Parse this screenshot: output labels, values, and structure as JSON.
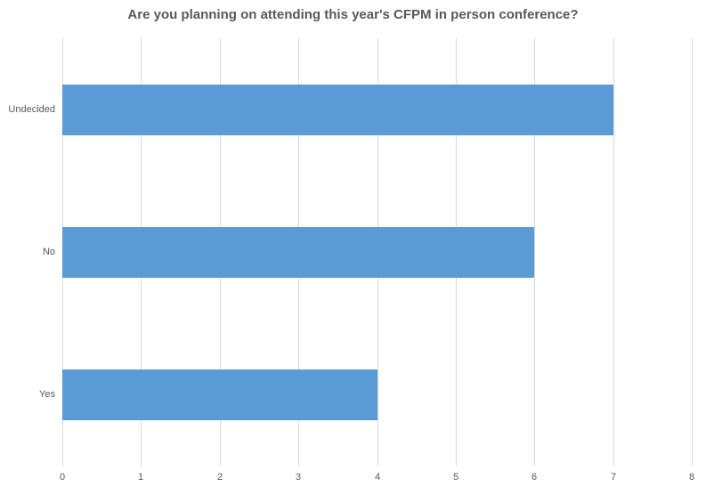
{
  "chart_data": {
    "type": "bar",
    "orientation": "horizontal",
    "title": "Are you planning on attending this year's CFPM in person conference?",
    "categories": [
      "Undecided",
      "No",
      "Yes"
    ],
    "values": [
      7,
      6,
      4
    ],
    "xlabel": "",
    "ylabel": "",
    "xlim": [
      0,
      8
    ],
    "xticks": [
      0,
      1,
      2,
      3,
      4,
      5,
      6,
      7,
      8
    ],
    "grid": "vertical",
    "legend": "none",
    "colors": {
      "bar": "#5B9BD5",
      "gridline": "#D9D9D9",
      "axis_label": "#595959",
      "title": "#595959"
    }
  }
}
